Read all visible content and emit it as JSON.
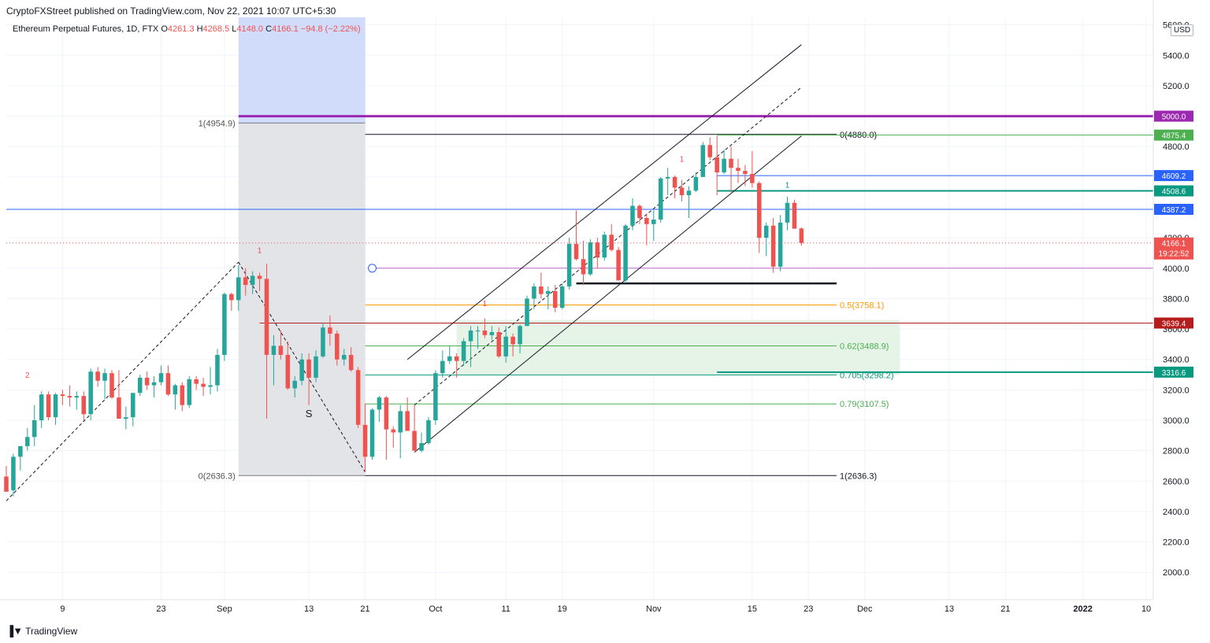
{
  "header": {
    "published": "CryptoFXStreet published on TradingView.com, Nov 22, 2021 10:07 UTC+5:30",
    "symbol": "Ethereum Perpetual Futures, 1D, FTX",
    "o_label": "O",
    "o": "4261.3",
    "h_label": "H",
    "h": "4268.5",
    "l_label": "L",
    "l": "4148.0",
    "c_label": "C",
    "c": "4166.1",
    "change": "−94.8 (−2.22%)"
  },
  "currency": "USD",
  "footer": {
    "brand": "TradingView",
    "logo": "tradingview-logo-icon"
  },
  "colors": {
    "up": "#26a69a",
    "down": "#ef5350",
    "purple": "#9c27b0",
    "green_line": "#4caf50",
    "blue_line": "#2962ff",
    "red_line": "#b71c1c",
    "teal_line": "#089981"
  },
  "chart_data": {
    "type": "candlestick",
    "title": "",
    "ylim": [
      1820,
      5650
    ],
    "y_ticks": [
      2000,
      2200,
      2400,
      2600,
      2800,
      3000,
      3200,
      3400,
      3600,
      3800,
      4000,
      4200,
      4400,
      4600,
      4800,
      5000,
      5200,
      5400,
      5600
    ],
    "y_tick_labels": [
      "2000.0",
      "2200.0",
      "2400.0",
      "2600.0",
      "2800.0",
      "3000.0",
      "3200.0",
      "3400.0",
      "3600.0",
      "3800.0",
      "4000.0",
      "4200.0",
      "4400.0",
      "4600.0",
      "4800.0",
      "5000.0",
      "5200.0",
      "5400.0",
      "5600.0"
    ],
    "x_start": "2021-08-01",
    "x_end": "2022-01-11",
    "x_ticks": [
      {
        "date": "2021-08-09",
        "label": "9"
      },
      {
        "date": "2021-08-23",
        "label": "23"
      },
      {
        "date": "2021-09-01",
        "label": "Sep"
      },
      {
        "date": "2021-09-13",
        "label": "13"
      },
      {
        "date": "2021-09-21",
        "label": "21"
      },
      {
        "date": "2021-10-01",
        "label": "Oct"
      },
      {
        "date": "2021-10-11",
        "label": "11"
      },
      {
        "date": "2021-10-19",
        "label": "19"
      },
      {
        "date": "2021-11-01",
        "label": "Nov"
      },
      {
        "date": "2021-11-15",
        "label": "15"
      },
      {
        "date": "2021-11-23",
        "label": "23"
      },
      {
        "date": "2021-12-01",
        "label": "Dec"
      },
      {
        "date": "2021-12-13",
        "label": "13"
      },
      {
        "date": "2021-12-21",
        "label": "21"
      },
      {
        "date": "2022-01-01",
        "label": "2022"
      },
      {
        "date": "2022-01-10",
        "label": "10"
      }
    ],
    "candles": [
      {
        "d": "2021-08-01",
        "o": 2630,
        "h": 2700,
        "l": 2540,
        "c": 2530
      },
      {
        "d": "2021-08-02",
        "o": 2540,
        "h": 2780,
        "l": 2500,
        "c": 2760
      },
      {
        "d": "2021-08-03",
        "o": 2760,
        "h": 2830,
        "l": 2670,
        "c": 2830
      },
      {
        "d": "2021-08-04",
        "o": 2830,
        "h": 2950,
        "l": 2800,
        "c": 2890
      },
      {
        "d": "2021-08-05",
        "o": 2890,
        "h": 3100,
        "l": 2830,
        "c": 3000
      },
      {
        "d": "2021-08-06",
        "o": 3000,
        "h": 3190,
        "l": 2950,
        "c": 3170
      },
      {
        "d": "2021-08-07",
        "o": 3170,
        "h": 3190,
        "l": 3000,
        "c": 3020
      },
      {
        "d": "2021-08-08",
        "o": 3020,
        "h": 3180,
        "l": 2970,
        "c": 3170
      },
      {
        "d": "2021-08-09",
        "o": 3170,
        "h": 3200,
        "l": 3100,
        "c": 3160
      },
      {
        "d": "2021-08-10",
        "o": 3160,
        "h": 3230,
        "l": 3090,
        "c": 3150
      },
      {
        "d": "2021-08-11",
        "o": 3150,
        "h": 3190,
        "l": 3070,
        "c": 3160
      },
      {
        "d": "2021-08-12",
        "o": 3160,
        "h": 3190,
        "l": 3000,
        "c": 3040
      },
      {
        "d": "2021-08-13",
        "o": 3040,
        "h": 3340,
        "l": 3000,
        "c": 3320
      },
      {
        "d": "2021-08-14",
        "o": 3320,
        "h": 3350,
        "l": 3220,
        "c": 3260
      },
      {
        "d": "2021-08-15",
        "o": 3260,
        "h": 3340,
        "l": 3140,
        "c": 3310
      },
      {
        "d": "2021-08-16",
        "o": 3310,
        "h": 3330,
        "l": 3140,
        "c": 3150
      },
      {
        "d": "2021-08-17",
        "o": 3150,
        "h": 3330,
        "l": 3010,
        "c": 3010
      },
      {
        "d": "2021-08-18",
        "o": 3010,
        "h": 3090,
        "l": 2940,
        "c": 3020
      },
      {
        "d": "2021-08-19",
        "o": 3020,
        "h": 3180,
        "l": 2960,
        "c": 3180
      },
      {
        "d": "2021-08-20",
        "o": 3180,
        "h": 3300,
        "l": 3160,
        "c": 3280
      },
      {
        "d": "2021-08-21",
        "o": 3280,
        "h": 3320,
        "l": 3200,
        "c": 3230
      },
      {
        "d": "2021-08-22",
        "o": 3230,
        "h": 3290,
        "l": 3150,
        "c": 3250
      },
      {
        "d": "2021-08-23",
        "o": 3250,
        "h": 3360,
        "l": 3230,
        "c": 3310
      },
      {
        "d": "2021-08-24",
        "o": 3310,
        "h": 3360,
        "l": 3160,
        "c": 3170
      },
      {
        "d": "2021-08-25",
        "o": 3170,
        "h": 3240,
        "l": 3070,
        "c": 3230
      },
      {
        "d": "2021-08-26",
        "o": 3230,
        "h": 3250,
        "l": 3060,
        "c": 3100
      },
      {
        "d": "2021-08-27",
        "o": 3100,
        "h": 3290,
        "l": 3080,
        "c": 3270
      },
      {
        "d": "2021-08-28",
        "o": 3270,
        "h": 3290,
        "l": 3200,
        "c": 3240
      },
      {
        "d": "2021-08-29",
        "o": 3240,
        "h": 3280,
        "l": 3160,
        "c": 3220
      },
      {
        "d": "2021-08-30",
        "o": 3220,
        "h": 3350,
        "l": 3170,
        "c": 3230
      },
      {
        "d": "2021-08-31",
        "o": 3230,
        "h": 3470,
        "l": 3190,
        "c": 3430
      },
      {
        "d": "2021-09-01",
        "o": 3430,
        "h": 3840,
        "l": 3390,
        "c": 3830
      },
      {
        "d": "2021-09-02",
        "o": 3830,
        "h": 3840,
        "l": 3720,
        "c": 3790
      },
      {
        "d": "2021-09-03",
        "o": 3790,
        "h": 4020,
        "l": 3720,
        "c": 3940
      },
      {
        "d": "2021-09-04",
        "o": 3940,
        "h": 4000,
        "l": 3820,
        "c": 3890
      },
      {
        "d": "2021-09-05",
        "o": 3890,
        "h": 3980,
        "l": 3830,
        "c": 3950
      },
      {
        "d": "2021-09-06",
        "o": 3950,
        "h": 3970,
        "l": 3850,
        "c": 3930
      },
      {
        "d": "2021-09-07",
        "o": 3930,
        "h": 4030,
        "l": 3010,
        "c": 3430
      },
      {
        "d": "2021-09-08",
        "o": 3430,
        "h": 3560,
        "l": 3230,
        "c": 3490
      },
      {
        "d": "2021-09-09",
        "o": 3490,
        "h": 3590,
        "l": 3400,
        "c": 3430
      },
      {
        "d": "2021-09-10",
        "o": 3430,
        "h": 3520,
        "l": 3200,
        "c": 3210
      },
      {
        "d": "2021-09-11",
        "o": 3210,
        "h": 3290,
        "l": 3150,
        "c": 3260
      },
      {
        "d": "2021-09-12",
        "o": 3260,
        "h": 3440,
        "l": 3230,
        "c": 3400
      },
      {
        "d": "2021-09-13",
        "o": 3400,
        "h": 3440,
        "l": 3100,
        "c": 3280
      },
      {
        "d": "2021-09-14",
        "o": 3280,
        "h": 3460,
        "l": 3250,
        "c": 3420
      },
      {
        "d": "2021-09-15",
        "o": 3420,
        "h": 3640,
        "l": 3410,
        "c": 3610
      },
      {
        "d": "2021-09-16",
        "o": 3610,
        "h": 3690,
        "l": 3490,
        "c": 3570
      },
      {
        "d": "2021-09-17",
        "o": 3570,
        "h": 3590,
        "l": 3360,
        "c": 3400
      },
      {
        "d": "2021-09-18",
        "o": 3400,
        "h": 3470,
        "l": 3360,
        "c": 3430
      },
      {
        "d": "2021-09-19",
        "o": 3430,
        "h": 3480,
        "l": 3320,
        "c": 3330
      },
      {
        "d": "2021-09-20",
        "o": 3330,
        "h": 3350,
        "l": 2950,
        "c": 2970
      },
      {
        "d": "2021-09-21",
        "o": 2970,
        "h": 3110,
        "l": 2660,
        "c": 2760
      },
      {
        "d": "2021-09-22",
        "o": 2760,
        "h": 3080,
        "l": 2740,
        "c": 3070
      },
      {
        "d": "2021-09-23",
        "o": 3070,
        "h": 3160,
        "l": 2990,
        "c": 3150
      },
      {
        "d": "2021-09-24",
        "o": 3150,
        "h": 3160,
        "l": 2740,
        "c": 2940
      },
      {
        "d": "2021-09-25",
        "o": 2940,
        "h": 2960,
        "l": 2820,
        "c": 2920
      },
      {
        "d": "2021-09-26",
        "o": 2920,
        "h": 3100,
        "l": 2750,
        "c": 3060
      },
      {
        "d": "2021-09-27",
        "o": 3060,
        "h": 3150,
        "l": 2930,
        "c": 2930
      },
      {
        "d": "2021-09-28",
        "o": 2930,
        "h": 3100,
        "l": 2800,
        "c": 2800
      },
      {
        "d": "2021-09-29",
        "o": 2800,
        "h": 2920,
        "l": 2790,
        "c": 2850
      },
      {
        "d": "2021-09-30",
        "o": 2850,
        "h": 3020,
        "l": 2840,
        "c": 3000
      },
      {
        "d": "2021-10-01",
        "o": 3000,
        "h": 3330,
        "l": 2970,
        "c": 3310
      },
      {
        "d": "2021-10-02",
        "o": 3310,
        "h": 3460,
        "l": 3280,
        "c": 3390
      },
      {
        "d": "2021-10-03",
        "o": 3390,
        "h": 3490,
        "l": 3370,
        "c": 3420
      },
      {
        "d": "2021-10-04",
        "o": 3420,
        "h": 3440,
        "l": 3280,
        "c": 3390
      },
      {
        "d": "2021-10-05",
        "o": 3390,
        "h": 3540,
        "l": 3360,
        "c": 3520
      },
      {
        "d": "2021-10-06",
        "o": 3520,
        "h": 3620,
        "l": 3350,
        "c": 3590
      },
      {
        "d": "2021-10-07",
        "o": 3590,
        "h": 3620,
        "l": 3470,
        "c": 3590
      },
      {
        "d": "2021-10-08",
        "o": 3590,
        "h": 3670,
        "l": 3540,
        "c": 3560
      },
      {
        "d": "2021-10-09",
        "o": 3560,
        "h": 3620,
        "l": 3530,
        "c": 3580
      },
      {
        "d": "2021-10-10",
        "o": 3580,
        "h": 3610,
        "l": 3410,
        "c": 3420
      },
      {
        "d": "2021-10-11",
        "o": 3420,
        "h": 3620,
        "l": 3380,
        "c": 3550
      },
      {
        "d": "2021-10-12",
        "o": 3550,
        "h": 3570,
        "l": 3420,
        "c": 3500
      },
      {
        "d": "2021-10-13",
        "o": 3500,
        "h": 3630,
        "l": 3440,
        "c": 3620
      },
      {
        "d": "2021-10-14",
        "o": 3620,
        "h": 3820,
        "l": 3620,
        "c": 3800
      },
      {
        "d": "2021-10-15",
        "o": 3800,
        "h": 3900,
        "l": 3730,
        "c": 3880
      },
      {
        "d": "2021-10-16",
        "o": 3880,
        "h": 3970,
        "l": 3800,
        "c": 3830
      },
      {
        "d": "2021-10-17",
        "o": 3830,
        "h": 3880,
        "l": 3730,
        "c": 3850
      },
      {
        "d": "2021-10-18",
        "o": 3850,
        "h": 3890,
        "l": 3710,
        "c": 3740
      },
      {
        "d": "2021-10-19",
        "o": 3740,
        "h": 3900,
        "l": 3730,
        "c": 3880
      },
      {
        "d": "2021-10-20",
        "o": 3880,
        "h": 4200,
        "l": 3860,
        "c": 4160
      },
      {
        "d": "2021-10-21",
        "o": 4160,
        "h": 4380,
        "l": 4050,
        "c": 4060
      },
      {
        "d": "2021-10-22",
        "o": 4060,
        "h": 4180,
        "l": 3890,
        "c": 3960
      },
      {
        "d": "2021-10-23",
        "o": 3960,
        "h": 4190,
        "l": 3950,
        "c": 4170
      },
      {
        "d": "2021-10-24",
        "o": 4170,
        "h": 4200,
        "l": 4000,
        "c": 4070
      },
      {
        "d": "2021-10-25",
        "o": 4070,
        "h": 4240,
        "l": 4050,
        "c": 4220
      },
      {
        "d": "2021-10-26",
        "o": 4220,
        "h": 4290,
        "l": 4110,
        "c": 4120
      },
      {
        "d": "2021-10-27",
        "o": 4120,
        "h": 4140,
        "l": 3920,
        "c": 3920
      },
      {
        "d": "2021-10-28",
        "o": 3920,
        "h": 4290,
        "l": 3900,
        "c": 4280
      },
      {
        "d": "2021-10-29",
        "o": 4280,
        "h": 4460,
        "l": 4250,
        "c": 4410
      },
      {
        "d": "2021-10-30",
        "o": 4410,
        "h": 4420,
        "l": 4290,
        "c": 4330
      },
      {
        "d": "2021-10-31",
        "o": 4330,
        "h": 4360,
        "l": 4150,
        "c": 4290
      },
      {
        "d": "2021-11-01",
        "o": 4290,
        "h": 4380,
        "l": 4180,
        "c": 4320
      },
      {
        "d": "2021-11-02",
        "o": 4320,
        "h": 4600,
        "l": 4300,
        "c": 4590
      },
      {
        "d": "2021-11-03",
        "o": 4590,
        "h": 4660,
        "l": 4480,
        "c": 4600
      },
      {
        "d": "2021-11-04",
        "o": 4600,
        "h": 4610,
        "l": 4460,
        "c": 4530
      },
      {
        "d": "2021-11-05",
        "o": 4530,
        "h": 4580,
        "l": 4440,
        "c": 4480
      },
      {
        "d": "2021-11-06",
        "o": 4480,
        "h": 4540,
        "l": 4330,
        "c": 4510
      },
      {
        "d": "2021-11-07",
        "o": 4510,
        "h": 4630,
        "l": 4500,
        "c": 4600
      },
      {
        "d": "2021-11-08",
        "o": 4600,
        "h": 4830,
        "l": 4600,
        "c": 4810
      },
      {
        "d": "2021-11-09",
        "o": 4810,
        "h": 4860,
        "l": 4710,
        "c": 4730
      },
      {
        "d": "2021-11-10",
        "o": 4730,
        "h": 4870,
        "l": 4480,
        "c": 4630
      },
      {
        "d": "2021-11-11",
        "o": 4630,
        "h": 4780,
        "l": 4620,
        "c": 4720
      },
      {
        "d": "2021-11-12",
        "o": 4720,
        "h": 4800,
        "l": 4500,
        "c": 4660
      },
      {
        "d": "2021-11-13",
        "o": 4660,
        "h": 4720,
        "l": 4560,
        "c": 4640
      },
      {
        "d": "2021-11-14",
        "o": 4640,
        "h": 4680,
        "l": 4540,
        "c": 4620
      },
      {
        "d": "2021-11-15",
        "o": 4620,
        "h": 4770,
        "l": 4530,
        "c": 4560
      },
      {
        "d": "2021-11-16",
        "o": 4560,
        "h": 4570,
        "l": 4100,
        "c": 4200
      },
      {
        "d": "2021-11-17",
        "o": 4200,
        "h": 4300,
        "l": 4080,
        "c": 4280
      },
      {
        "d": "2021-11-18",
        "o": 4280,
        "h": 4330,
        "l": 3970,
        "c": 4010
      },
      {
        "d": "2021-11-19",
        "o": 4010,
        "h": 4350,
        "l": 3980,
        "c": 4300
      },
      {
        "d": "2021-11-20",
        "o": 4300,
        "h": 4470,
        "l": 4250,
        "c": 4430
      },
      {
        "d": "2021-11-21",
        "o": 4430,
        "h": 4450,
        "l": 4260,
        "c": 4260
      },
      {
        "d": "2021-11-22",
        "o": 4261.3,
        "h": 4268.5,
        "l": 4148.0,
        "c": 4166.1
      }
    ],
    "horizontal_levels": [
      {
        "price": 5000.0,
        "label": "5000.0",
        "color": "#9c27b0"
      },
      {
        "price": 4875.4,
        "label": "4875.4",
        "color": "#4caf50"
      },
      {
        "price": 4609.2,
        "label": "4609.2",
        "color": "#2962ff"
      },
      {
        "price": 4508.6,
        "label": "4508.6",
        "color": "#089981"
      },
      {
        "price": 4387.2,
        "label": "4387.2",
        "color": "#2962ff"
      },
      {
        "price": 3639.4,
        "label": "3639.4",
        "color": "#b71c1c"
      },
      {
        "price": 3316.6,
        "label": "3316.6",
        "color": "#089981"
      }
    ],
    "last_price": {
      "price": 4166.1,
      "label": "4166.1",
      "countdown": "19:22:52",
      "color": "#ef5350"
    },
    "fib_left": {
      "from_date": "2021-09-03",
      "to_date": "2021-09-21",
      "high": 4954.9,
      "low": 2636.3,
      "labels": [
        {
          "price": 4954.9,
          "label": "1(4954.9)"
        },
        {
          "price": 2636.3,
          "label": "0(2636.3)"
        }
      ]
    },
    "fib_right": {
      "from_date": "2021-09-21",
      "to_date": "2021-11-27",
      "levels": [
        {
          "price": 4880.0,
          "label": "0(4880.0)",
          "color": "#131722"
        },
        {
          "price": 3758.1,
          "label": "0.5(3758.1)",
          "color": "#ff9800"
        },
        {
          "price": 3488.9,
          "label": "0.62(3488.9)",
          "color": "#4caf50"
        },
        {
          "price": 3298.2,
          "label": "0.705(3298.2)",
          "color": "#089981"
        },
        {
          "price": 3107.5,
          "label": "0.79(3107.5)",
          "color": "#4caf50"
        },
        {
          "price": 2636.3,
          "label": "1(2636.3)",
          "color": "#131722"
        }
      ]
    },
    "annotations": [
      {
        "d": "2021-08-04",
        "price": 3280,
        "text": "2",
        "color": "#ef5350"
      },
      {
        "d": "2021-09-06",
        "price": 4100,
        "text": "1",
        "color": "#ef5350"
      },
      {
        "d": "2021-10-08",
        "price": 3750,
        "text": "1",
        "color": "#ef5350"
      },
      {
        "d": "2021-11-05",
        "price": 4700,
        "text": "1",
        "color": "#ef5350"
      },
      {
        "d": "2021-11-20",
        "price": 4530,
        "text": "1",
        "color": "#089981"
      },
      {
        "d": "2021-09-13",
        "price": 3020,
        "text": "S",
        "color": "#131722"
      }
    ]
  }
}
